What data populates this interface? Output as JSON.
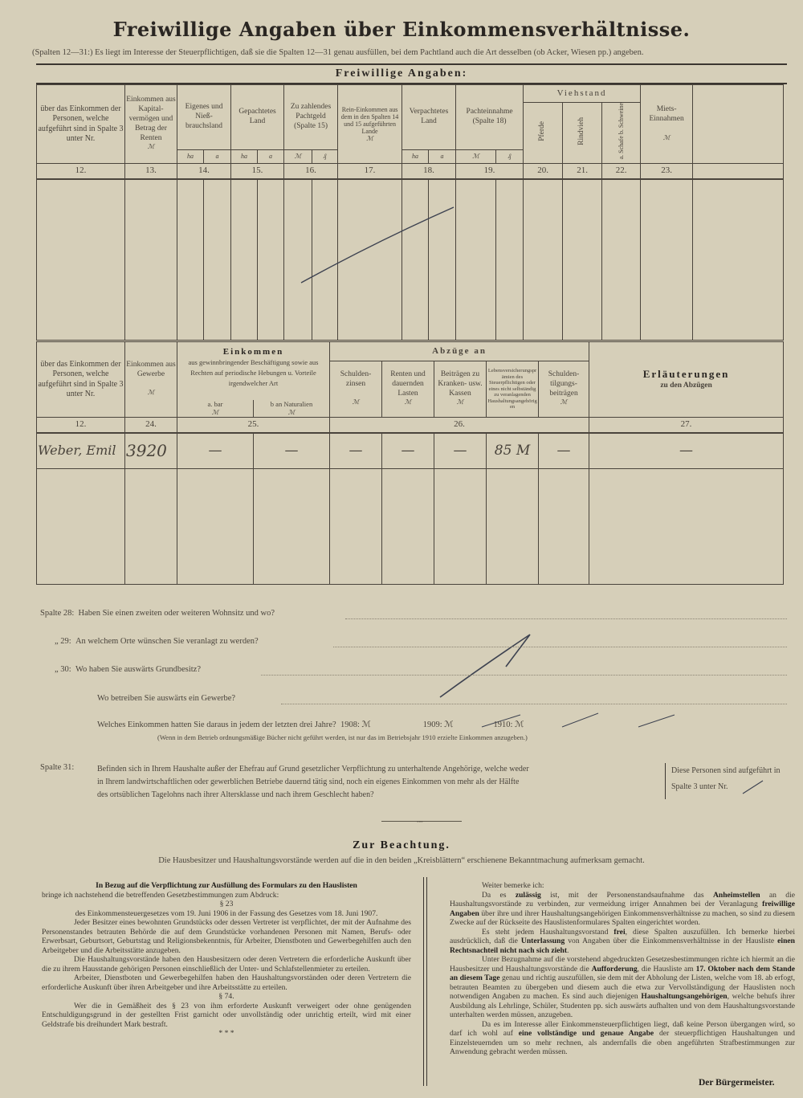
{
  "header": {
    "title": "Freiwillige Angaben über Einkommensverhältnisse.",
    "subtitle": "(Spalten 12—31:) Es liegt im Interesse der Steuerpflichtigen, daß sie die Spalten 12—31 genau ausfüllen, bei dem Pachtland auch die Art desselben (ob Acker, Wiesen pp.) angeben.",
    "section_title": "Freiwillige Angaben:"
  },
  "table1": {
    "headers": {
      "c12": "über das Einkommen der Personen, welche aufgeführt sind in Spalte 3 unter Nr.",
      "c13": "Einkommen aus Kapital-vermögen und Betrag der Renten",
      "c14": "Eigenes und Nieß-brauchsland",
      "c15": "Gepachtetes Land",
      "c16": "Zu zahlendes Pachtgeld (Spalte 15)",
      "c17": "Rein-Einkommen aus dem in den Spalten 14 und 15 aufgeführten Lande",
      "c18": "Verpachtetes Land",
      "c19": "Pachteinnahme (Spalte 18)",
      "viehstand": "Viehstand",
      "c20": "Pferde",
      "c21": "Rindvieh",
      "c22": "a. Schafe b. Schweine",
      "c23": "Miets-Einnahmen"
    },
    "units": {
      "mark": "ℳ",
      "pf": "₰",
      "ha": "ha",
      "a": "a"
    },
    "numbers": [
      "12.",
      "13.",
      "14.",
      "15.",
      "16.",
      "17.",
      "18.",
      "19.",
      "20.",
      "21.",
      "22.",
      "23."
    ]
  },
  "table2": {
    "headers": {
      "c12": "über das Einkommen der Personen, welche aufgeführt sind in Spalte 3 unter Nr.",
      "c24": "Einkommen aus Gewerbe",
      "einkommen_title": "Einkommen",
      "einkommen_text": "aus gewinnbringender Beschäftigung sowie aus Rechten auf periodische Hebungen u. Vorteile irgendwelcher Art",
      "c25a": "a. bar",
      "c25b": "b an Naturalien",
      "abzuege_title": "Abzüge an",
      "d1": "Schulden-zinsen",
      "d2": "Renten und dauernden Lasten",
      "d3": "Beiträgen zu Kranken- usw. Kassen",
      "d4": "Lebensversicherungsprämien des Steuerpflichtigen oder eines nicht selbständig zu veranlagenden Haushaltungsangehörigen",
      "d5": "Schulden-tilgungs-beiträgen",
      "c27_title": "Erläuterungen",
      "c27_sub": "zu den Abzügen"
    },
    "numbers": [
      "12.",
      "24.",
      "25.",
      "26.",
      "27."
    ],
    "row": {
      "name": "Weber, Emil",
      "gewerbe": "3920",
      "bar": "—",
      "naturalien": "—",
      "schuldenzinsen": "—",
      "renten": "—",
      "kassen": "—",
      "lebensvers": "85 M",
      "tilgung": "—",
      "erlaeuterungen": "—"
    }
  },
  "questions": {
    "q28": {
      "label": "Spalte 28:",
      "text": "Haben Sie einen zweiten oder weiteren Wohnsitz und wo?"
    },
    "q29": {
      "label": "„ 29:",
      "text": "An welchem Orte wünschen Sie veranlagt zu werden?"
    },
    "q30": {
      "label": "„ 30:",
      "text": "Wo haben Sie auswärts Grundbesitz?"
    },
    "q30b": "Wo betreiben Sie auswärts ein Gewerbe?",
    "q30c": "Welches Einkommen hatten Sie daraus in jedem der letzten drei Jahre?",
    "y1908": "1908: ℳ",
    "y1909": "1909: ℳ",
    "y1910": "1910: ℳ",
    "footnote": "(Wenn in dem Betrieb ordnungsmäßige Bücher nicht geführt werden, ist nur das im Betriebsjahr 1910 erzielte Einkommen anzugeben.)",
    "q31": {
      "label": "Spalte 31:",
      "lines": [
        "Befinden sich in Ihrem Haushalte außer der Ehefrau auf Grund gesetzlicher Verpflichtung zu unterhaltende Angehörige, welche weder",
        "in Ihrem landwirtschaftlichen oder gewerblichen Betriebe dauernd tätig sind, noch ein eigenes Einkommen von mehr als der Hälfte",
        "des ortsüblichen Tagelohns nach ihrer Altersklasse und nach ihrem Geschlecht haben?"
      ],
      "side1": "Diese Personen sind aufgeführt in",
      "side2": "Spalte 3 unter Nr."
    }
  },
  "notice": {
    "title": "Zur Beachtung.",
    "subtitle": "Die Hausbesitzer und Haushaltungsvorstände werden auf die in den beiden „Kreisblättern“ erschienene Bekanntmachung aufmerksam gemacht.",
    "left": [
      {
        "cls": "c",
        "segs": [
          {
            "t": "In Bezug auf die Verpflichtung zur Ausfüllung des Formulars zu den Hauslisten",
            "b": true
          }
        ]
      },
      {
        "cls": "ni",
        "segs": [
          {
            "t": "bringe ich nachstehend die betreffenden Gesetzbestimmungen zum Abdruck:"
          }
        ]
      },
      {
        "cls": "c",
        "segs": [
          {
            "t": "§ 23"
          }
        ]
      },
      {
        "cls": "c",
        "segs": [
          {
            "t": "des Einkommensteuergesetzes vom 19. Juni 1906 in der Fassung des Gesetzes vom 18. Juni 1907."
          }
        ]
      },
      {
        "segs": [
          {
            "t": "Jeder Besitzer eines bewohnten Grundstücks oder dessen Vertreter ist verpflichtet, der mit der Aufnahme des Personenstandes betrauten Behörde die auf dem Grundstücke vorhandenen Personen mit Namen, Berufs- oder Erwerbsart, Geburtsort, Geburtstag und Religionsbekenntnis, für Arbeiter, Dienstboten und Gewerbegehilfen auch den Arbeitgeber und die Arbeitsstätte anzugeben."
          }
        ]
      },
      {
        "segs": [
          {
            "t": "Die Haushaltungsvorstände haben den Hausbesitzern oder deren Vertretern die erforderliche Auskunft über die zu ihrem Hausstande gehörigen Personen einschließlich der Unter- und Schlafstellenmieter zu erteilen."
          }
        ]
      },
      {
        "segs": [
          {
            "t": "Arbeiter, Dienstboten und Gewerbegehilfen haben den Haushaltungsvorständen oder deren Vertretern die erforderliche Auskunft über ihren Arbeitgeber und ihre Arbeitsstätte zu erteilen."
          }
        ]
      },
      {
        "cls": "c",
        "segs": [
          {
            "t": "§ 74."
          }
        ]
      },
      {
        "segs": [
          {
            "t": "Wer die in Gemäßheit des § 23 von ihm erforderte Auskunft verweigert oder ohne genügenden Entschuldigungsgrund in der gestellten Frist garnicht oder unvollständig oder unrichtig erteilt, wird mit einer Geldstrafe bis dreihundert Mark bestraft."
          }
        ]
      },
      {
        "cls": "c",
        "segs": [
          {
            "t": "*      *      *"
          }
        ]
      }
    ],
    "right": [
      {
        "segs": [
          {
            "t": "Weiter bemerke ich:"
          }
        ]
      },
      {
        "segs": [
          {
            "t": "Da es "
          },
          {
            "t": "zulässig",
            "b": true
          },
          {
            "t": " ist, mit der Personenstandsaufnahme das "
          },
          {
            "t": "Anheimstellen",
            "b": true
          },
          {
            "t": " an die Haushaltungsvorstände zu verbinden, zur vermeidung irriger Annahmen bei der Veranlagung "
          },
          {
            "t": "freiwillige Angaben",
            "b": true
          },
          {
            "t": " über ihre und ihrer Haushaltungsangehörigen Einkommensverhältnisse zu machen, so sind zu diesem Zwecke auf der Rückseite des Hauslistenformulares Spalten eingerichtet worden."
          }
        ]
      },
      {
        "segs": [
          {
            "t": "Es steht jedem Haushaltungsvorstand "
          },
          {
            "t": "frei",
            "b": true
          },
          {
            "t": ", diese Spalten auszufüllen. Ich bemerke hierbei ausdrücklich, daß die "
          },
          {
            "t": "Unterlassung",
            "b": true
          },
          {
            "t": " von Angaben über die Einkommensverhältnisse in der Hausliste "
          },
          {
            "t": "einen Rechtsnachteil nicht nach sich zieht",
            "b": true
          },
          {
            "t": "."
          }
        ]
      },
      {
        "segs": [
          {
            "t": "Unter Bezugnahme auf die vorstehend abgedruckten Gesetzesbestimmungen richte ich hiermit an die Hausbesitzer und Haushaltungsvorstände die "
          },
          {
            "t": "Aufforderung",
            "b": true
          },
          {
            "t": ", die Hausliste am "
          },
          {
            "t": "17. Oktober nach dem Stande an diesem Tage",
            "b": true
          },
          {
            "t": " genau und richtig auszufüllen, sie dem mit der Abholung der Listen, welche vom 18. ab erfogt, betrauten Beamten zu übergeben und diesem auch die etwa zur Vervollständigung der Hauslisten noch notwendigen Angaben zu machen. Es sind auch diejenigen "
          },
          {
            "t": "Haushaltungsangehörigen",
            "b": true
          },
          {
            "t": ", welche behufs ihrer Ausbildung als Lehrlinge, Schüler, Studenten pp. sich auswärts aufhalten und von dem Haushaltungsvorstande unterhalten werden müssen, anzugeben."
          }
        ]
      },
      {
        "segs": [
          {
            "t": "Da es im Interesse aller Einkommensteuerpflichtigen liegt, daß keine Person übergangen wird, so darf ich wohl auf "
          },
          {
            "t": "eine vollständige und genaue Angabe",
            "b": true
          },
          {
            "t": " der steuerpflichtigen Haushaltungen und Einzelsteuernden um so mehr rechnen, als andernfalls die oben angeführten Strafbestimmungen zur Anwendung gebracht werden müssen."
          }
        ]
      }
    ],
    "signature": "Der Bürgermeister."
  },
  "colors": {
    "paper": "#d6cfb9",
    "ink": "#3b3630",
    "handwriting": "#3d4250"
  }
}
